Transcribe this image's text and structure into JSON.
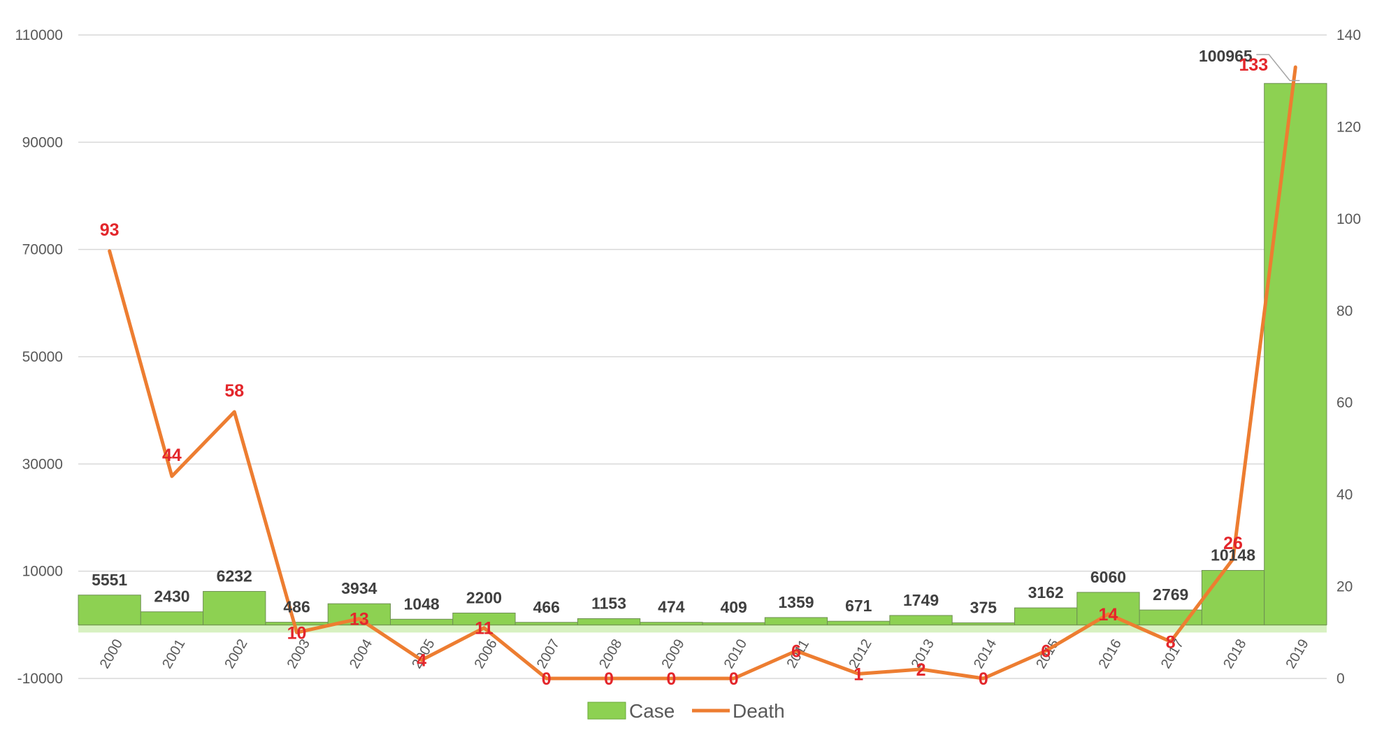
{
  "chart_data": {
    "type": "bar+line",
    "categories": [
      "2000",
      "2001",
      "2002",
      "2003",
      "2004",
      "2005",
      "2006",
      "2007",
      "2008",
      "2009",
      "2010",
      "2011",
      "2012",
      "2013",
      "2014",
      "2015",
      "2016",
      "2017",
      "2018",
      "2019"
    ],
    "series": [
      {
        "name": "Case",
        "type": "bar",
        "axis": "left",
        "color": "#8dd152",
        "values": [
          5551,
          2430,
          6232,
          486,
          3934,
          1048,
          2200,
          466,
          1153,
          474,
          409,
          1359,
          671,
          1749,
          375,
          3162,
          6060,
          2769,
          10148,
          100965
        ],
        "labels": [
          "5551",
          "2430",
          "6232",
          "486",
          "3934",
          "1048",
          "2200",
          "466",
          "1153",
          "474",
          "409",
          "1359",
          "671",
          "1749",
          "375",
          "3162",
          "6060",
          "2769",
          "10148",
          "100965"
        ]
      },
      {
        "name": "Death",
        "type": "line",
        "axis": "right",
        "color": "#ed7d31",
        "values": [
          93,
          44,
          58,
          10,
          13,
          4,
          11,
          0,
          0,
          0,
          0,
          6,
          1,
          2,
          0,
          6,
          14,
          8,
          26,
          133
        ],
        "labels": [
          "93",
          "44",
          "58",
          "10",
          "13",
          "4",
          "11",
          "0",
          "0",
          "0",
          "0",
          "6",
          "1",
          "2",
          "0",
          "6",
          "14",
          "8",
          "26",
          "133"
        ]
      }
    ],
    "left_axis": {
      "ylim": [
        -10000,
        110000
      ],
      "ticks": [
        -10000,
        10000,
        30000,
        50000,
        70000,
        90000,
        110000
      ],
      "tick_labels": [
        "-10000",
        "10000",
        "30000",
        "50000",
        "70000",
        "90000",
        "110000"
      ]
    },
    "right_axis": {
      "ylim": [
        0,
        140
      ],
      "ticks": [
        0,
        20,
        40,
        60,
        80,
        100,
        120,
        140
      ],
      "tick_labels": [
        "0",
        "20",
        "40",
        "60",
        "80",
        "100",
        "120",
        "140"
      ]
    },
    "grid": true,
    "legend": {
      "position": "bottom",
      "entries": [
        {
          "label": "Case",
          "kind": "bar",
          "color": "#8dd152"
        },
        {
          "label": "Death",
          "kind": "line",
          "color": "#ed7d31"
        }
      ]
    }
  }
}
